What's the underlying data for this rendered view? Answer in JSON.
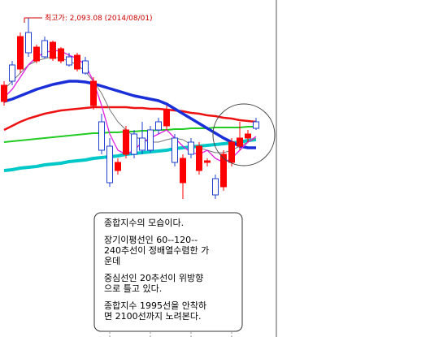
{
  "chart_data": {
    "type": "candlestick",
    "annotation": "최고가: 2,093.08 (2014/08/01)",
    "ylim": [
      1892.5,
      2100
    ],
    "up_color": "#ff0000",
    "down_color": "#1f3fd0",
    "open": [
      2037.5,
      2060,
      2057.5,
      2080,
      2062.5,
      2075,
      2064,
      2062.5,
      2065,
      2057.5,
      2062.5,
      2035,
      2025,
      2010,
      1995,
      2005,
      2017.5,
      2015,
      2020,
      2025,
      2022.5,
      2015,
      1987.5,
      2012.5,
      1995,
      2000,
      1990,
      1985,
      2000,
      2010,
      2015,
      2025
    ],
    "high": [
      2050,
      2062.5,
      2080,
      2089,
      2072.5,
      2077.5,
      2075,
      2071,
      2067.5,
      2067.5,
      2065,
      2052.5,
      2030,
      2015,
      2002.5,
      2022.5,
      2020,
      2025,
      2022.5,
      2027.5,
      2035,
      2017.5,
      2005,
      2015,
      2012.5,
      2002.5,
      1992.5,
      2007.5,
      2015,
      2025,
      2020,
      2027.5
    ],
    "low": [
      2035,
      2047.5,
      2055,
      2065,
      2061,
      2064,
      2062.5,
      2061,
      2059,
      2056,
      2054,
      2032.5,
      2005,
      1985,
      1992.5,
      2002.5,
      2002.5,
      2005,
      2006,
      2017.5,
      2020,
      1997.5,
      1977.5,
      2002.5,
      1992.5,
      1997.5,
      1977.5,
      1982.5,
      1997.5,
      2007.5,
      2012.5,
      2020
    ],
    "close": [
      2047.5,
      2050,
      2077.5,
      2067.5,
      2071,
      2065,
      2074,
      2070,
      2060,
      2066,
      2055,
      2050,
      2007.5,
      1987.5,
      2000,
      2020,
      2005,
      2007.5,
      2007.5,
      2020,
      2032.5,
      2000,
      2002.5,
      2005,
      2010,
      2001,
      1980,
      2005,
      2012.5,
      2015,
      2017.5,
      2021
    ],
    "series": [
      {
        "color": "#00c8c8",
        "width": 4,
        "values": [
          1995,
          1995.5,
          1996.5,
          1997,
          1997.5,
          1998.5,
          1999,
          1999.5,
          2000.5,
          2001,
          2001.5,
          2002.5,
          2003,
          2003.5,
          2004,
          2005,
          2005.5,
          2006,
          2006.5,
          2007,
          2007.5,
          2008.5,
          2009,
          2009.5,
          2010,
          2010.5,
          2011,
          2011.5,
          2012,
          2012.5,
          2013.5,
          2014
        ]
      },
      {
        "color": "#22cc22",
        "width": 2,
        "values": [
          2012.5,
          2013,
          2013.5,
          2014,
          2014.5,
          2015,
          2015.5,
          2016,
          2016.5,
          2017,
          2017.5,
          2018,
          2018,
          2018.5,
          2018.5,
          2019,
          2019,
          2019.5,
          2019.5,
          2020,
          2020,
          2020.5,
          2020.5,
          2021,
          2021,
          2021,
          2021.5,
          2021.5,
          2021.5,
          2021.5,
          2022,
          2022
        ]
      },
      {
        "color": "#ee1111",
        "width": 2.5,
        "values": [
          2020,
          2022.5,
          2025,
          2027,
          2028.5,
          2030,
          2031,
          2032,
          2032.5,
          2033,
          2033.5,
          2034,
          2034,
          2034,
          2034,
          2034,
          2033.5,
          2033.5,
          2033,
          2033,
          2032.5,
          2032,
          2031.5,
          2030.5,
          2030,
          2029,
          2028.5,
          2027.5,
          2027,
          2026,
          2025.5,
          2025
        ]
      },
      {
        "color": "#1a2fd8",
        "width": 3.5,
        "values": [
          2037.5,
          2039,
          2041,
          2043,
          2045,
          2046.5,
          2048,
          2049,
          2050,
          2050,
          2049.5,
          2048.5,
          2047,
          2045.5,
          2044,
          2042.5,
          2041,
          2040,
          2039,
          2038,
          2036,
          2033,
          2030,
          2027,
          2024,
          2021,
          2018,
          2015,
          2012.5,
          2010,
          2009,
          2009
        ]
      },
      {
        "color": "#777777",
        "width": 1,
        "values": [
          2045,
          2050,
          2055,
          2060,
          2062.5,
          2064,
          2065,
          2064,
          2062.5,
          2060,
          2056,
          2050,
          2042.5,
          2032.5,
          2025,
          2020,
          2016,
          2014,
          2012.5,
          2012.5,
          2014,
          2015,
          2014,
          2011,
          2009,
          2007.5,
          2006,
          2006,
          2007.5,
          2010,
          2012.5,
          2015
        ]
      },
      {
        "color": "#e020e0",
        "width": 1.3,
        "values": [
          2040,
          2045,
          2052.5,
          2060,
          2065,
          2067.5,
          2069,
          2068.5,
          2066,
          2064,
          2060,
          2050,
          2035,
          2017.5,
          2007.5,
          2005,
          2007.5,
          2012.5,
          2015,
          2017.5,
          2020,
          2015,
          2010,
          2006,
          2005,
          2007.5,
          2002.5,
          2000,
          2002.5,
          2007.5,
          2012.5,
          2016
        ]
      }
    ],
    "note": [
      [
        "종합지수의 모습이다."
      ],
      [
        "장기이평선인 60--120--",
        "240추선이 정배열수렴한 가",
        "운데"
      ],
      [
        "중심선인 20추선이 위방향",
        "으로 틀고 있다."
      ],
      [
        "종합지수 1995선을 안착하",
        "면 2100선까지 노려본다."
      ]
    ]
  }
}
